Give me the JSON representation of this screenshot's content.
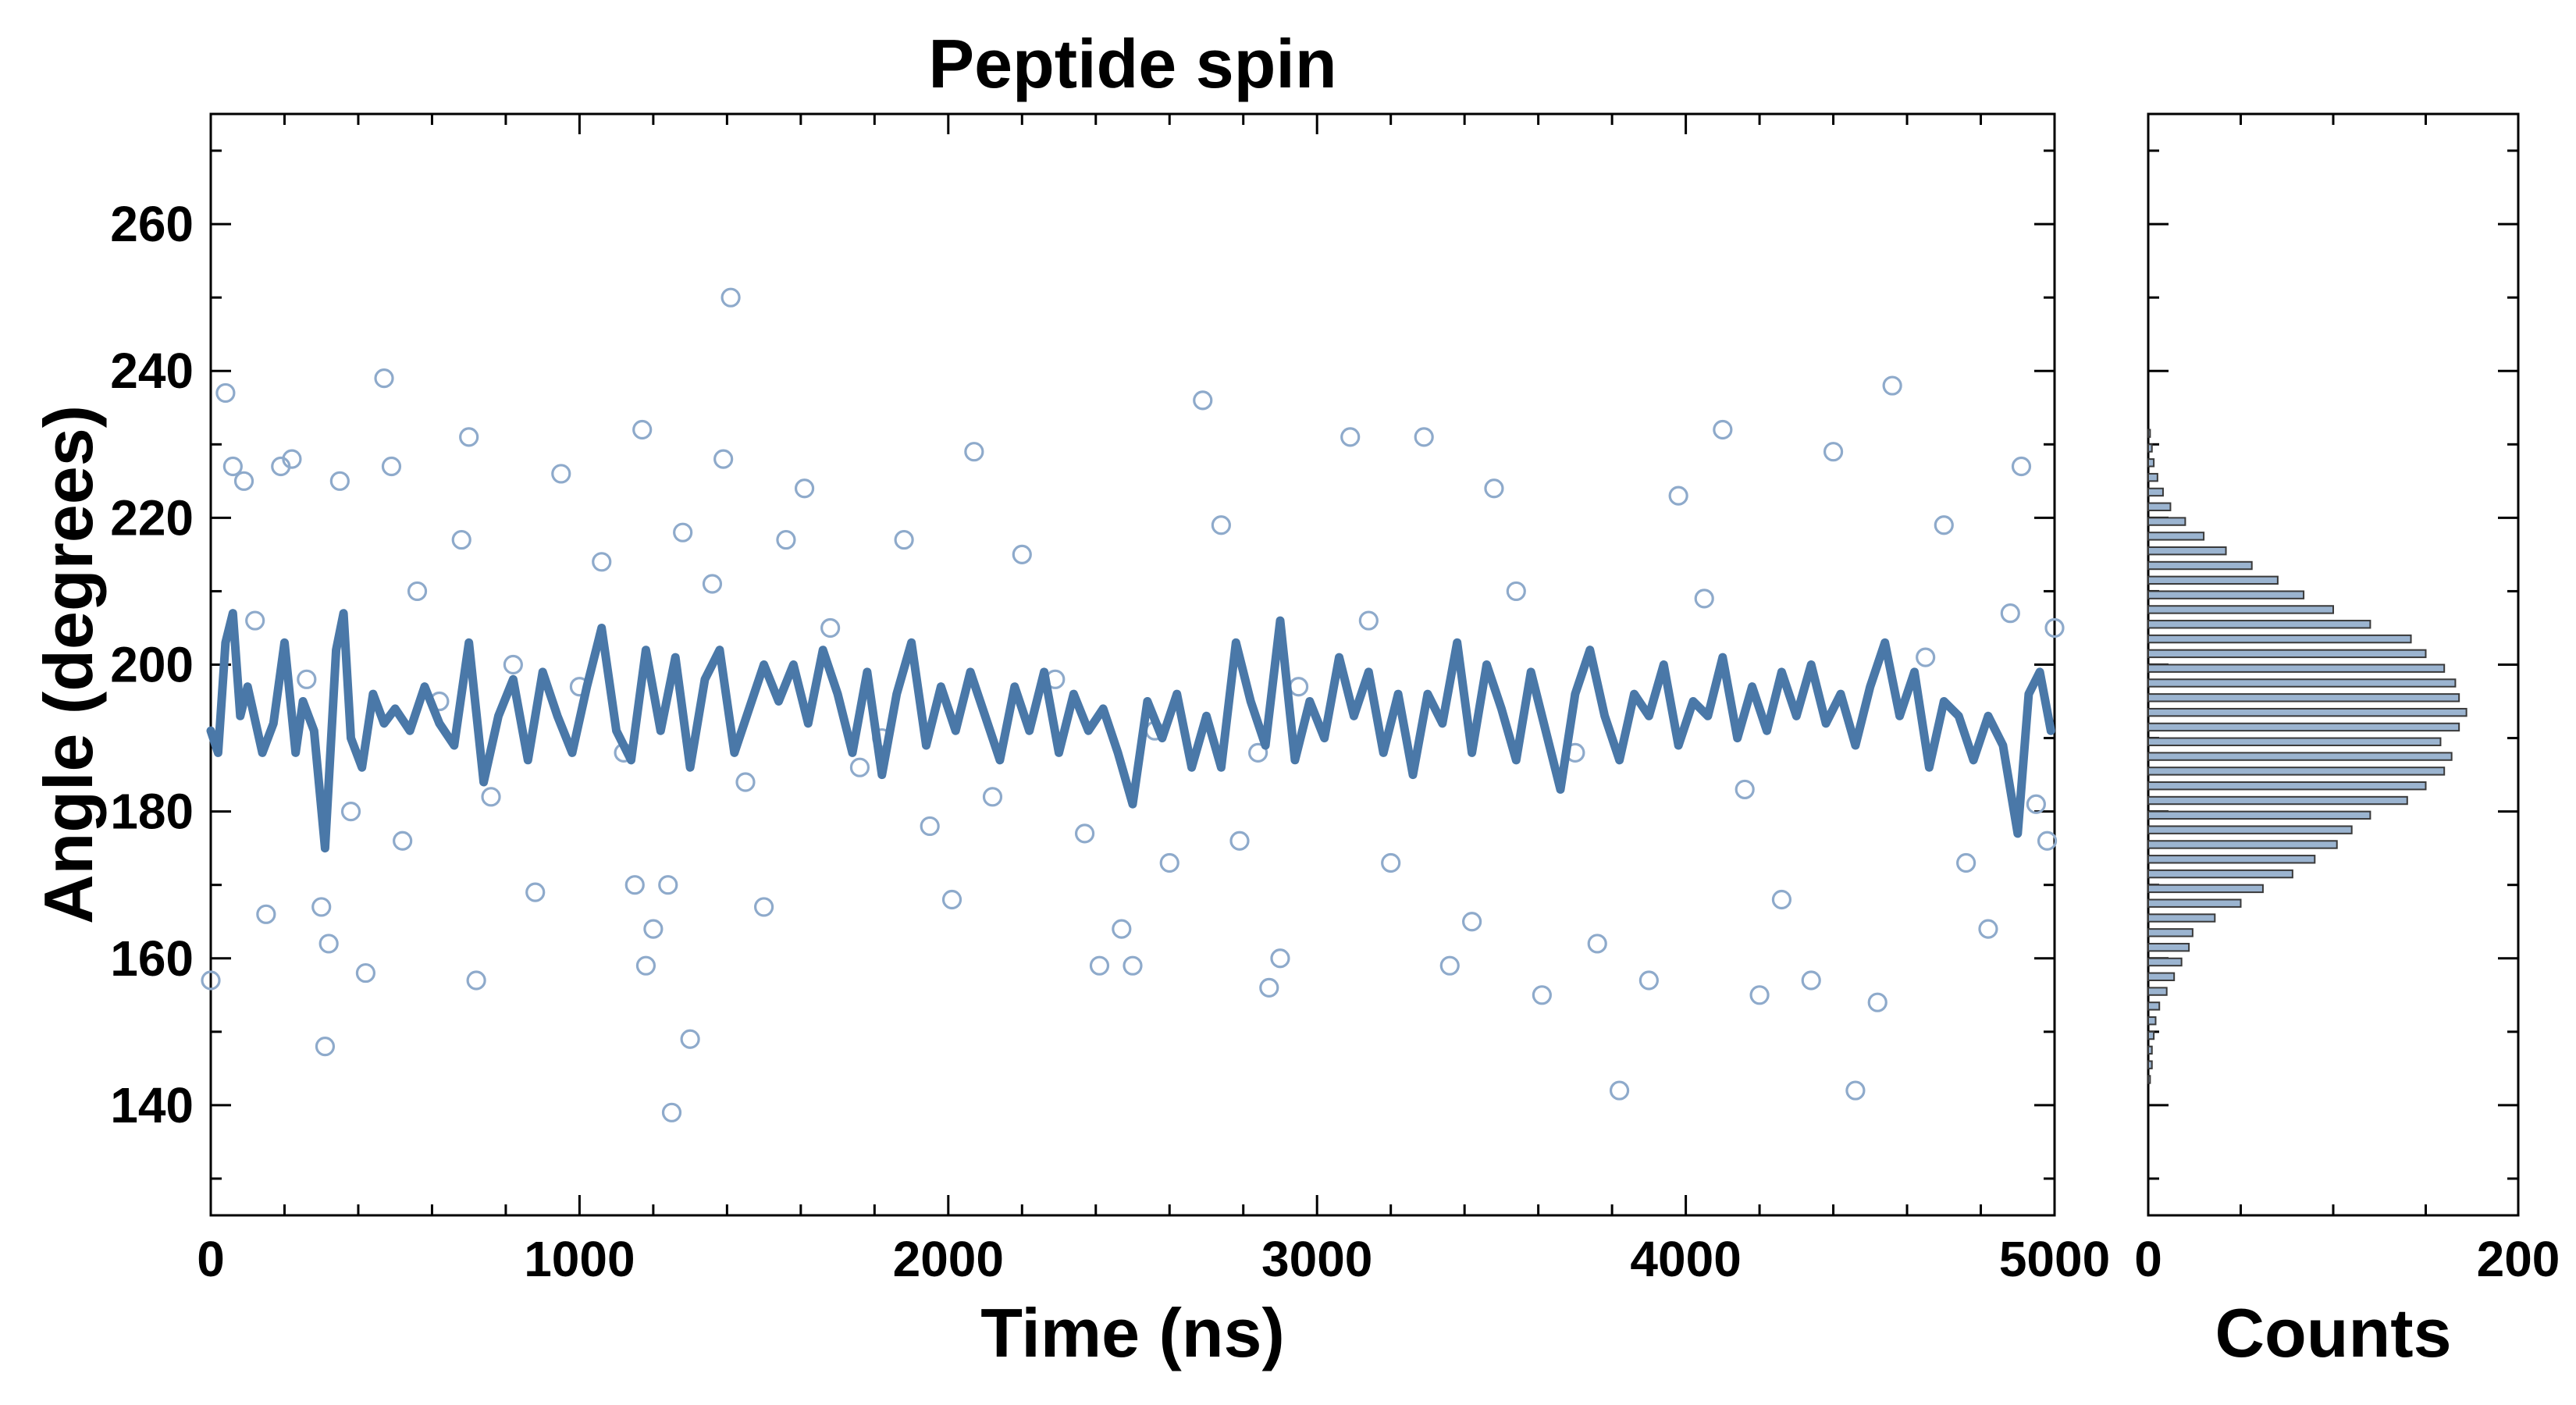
{
  "chart_data": [
    {
      "type": "scatter",
      "title": "Peptide spin",
      "xlabel": "Time (ns)",
      "ylabel": "Angle (degrees)",
      "xlim": [
        0,
        5000
      ],
      "ylim": [
        125,
        275
      ],
      "xticks": [
        "0",
        "1000",
        "2000",
        "3000",
        "4000",
        "5000"
      ],
      "yticks": [
        "140",
        "160",
        "180",
        "200",
        "220",
        "240",
        "260"
      ],
      "grid": false,
      "series": [
        {
          "style": "open-circle markers",
          "color": "#8eaacb",
          "points": [
            [
              0,
              157
            ],
            [
              40,
              237
            ],
            [
              60,
              227
            ],
            [
              90,
              225
            ],
            [
              120,
              206
            ],
            [
              150,
              166
            ],
            [
              190,
              227
            ],
            [
              220,
              228
            ],
            [
              260,
              198
            ],
            [
              300,
              167
            ],
            [
              310,
              148
            ],
            [
              320,
              162
            ],
            [
              350,
              225
            ],
            [
              380,
              180
            ],
            [
              420,
              158
            ],
            [
              470,
              239
            ],
            [
              490,
              227
            ],
            [
              520,
              176
            ],
            [
              560,
              210
            ],
            [
              620,
              195
            ],
            [
              680,
              217
            ],
            [
              700,
              231
            ],
            [
              720,
              157
            ],
            [
              760,
              182
            ],
            [
              820,
              200
            ],
            [
              880,
              169
            ],
            [
              950,
              226
            ],
            [
              1000,
              197
            ],
            [
              1060,
              214
            ],
            [
              1120,
              188
            ],
            [
              1150,
              170
            ],
            [
              1170,
              232
            ],
            [
              1180,
              159
            ],
            [
              1200,
              164
            ],
            [
              1240,
              170
            ],
            [
              1250,
              139
            ],
            [
              1280,
              218
            ],
            [
              1300,
              149
            ],
            [
              1360,
              211
            ],
            [
              1390,
              228
            ],
            [
              1410,
              250
            ],
            [
              1450,
              184
            ],
            [
              1500,
              167
            ],
            [
              1560,
              217
            ],
            [
              1610,
              224
            ],
            [
              1680,
              205
            ],
            [
              1760,
              186
            ],
            [
              1820,
              190
            ],
            [
              1880,
              217
            ],
            [
              1950,
              178
            ],
            [
              2010,
              168
            ],
            [
              2070,
              229
            ],
            [
              2120,
              182
            ],
            [
              2200,
              215
            ],
            [
              2290,
              198
            ],
            [
              2370,
              177
            ],
            [
              2410,
              159
            ],
            [
              2470,
              164
            ],
            [
              2500,
              159
            ],
            [
              2560,
              191
            ],
            [
              2600,
              173
            ],
            [
              2690,
              236
            ],
            [
              2740,
              219
            ],
            [
              2790,
              176
            ],
            [
              2840,
              188
            ],
            [
              2870,
              156
            ],
            [
              2900,
              160
            ],
            [
              2950,
              197
            ],
            [
              3090,
              231
            ],
            [
              3140,
              206
            ],
            [
              3200,
              173
            ],
            [
              3290,
              231
            ],
            [
              3360,
              159
            ],
            [
              3420,
              165
            ],
            [
              3480,
              224
            ],
            [
              3540,
              210
            ],
            [
              3610,
              155
            ],
            [
              3700,
              188
            ],
            [
              3760,
              162
            ],
            [
              3820,
              142
            ],
            [
              3900,
              157
            ],
            [
              3980,
              223
            ],
            [
              4050,
              209
            ],
            [
              4100,
              232
            ],
            [
              4160,
              183
            ],
            [
              4200,
              155
            ],
            [
              4260,
              168
            ],
            [
              4340,
              157
            ],
            [
              4400,
              229
            ],
            [
              4460,
              142
            ],
            [
              4520,
              154
            ],
            [
              4560,
              238
            ],
            [
              4650,
              201
            ],
            [
              4700,
              219
            ],
            [
              4760,
              173
            ],
            [
              4820,
              164
            ],
            [
              4880,
              207
            ],
            [
              4910,
              227
            ],
            [
              4950,
              181
            ],
            [
              4980,
              176
            ],
            [
              5000,
              205
            ]
          ]
        },
        {
          "style": "thick line",
          "color": "#4a78a8",
          "points": [
            [
              0,
              191
            ],
            [
              20,
              188
            ],
            [
              40,
              203
            ],
            [
              60,
              207
            ],
            [
              80,
              193
            ],
            [
              100,
              197
            ],
            [
              140,
              188
            ],
            [
              170,
              192
            ],
            [
              200,
              203
            ],
            [
              230,
              188
            ],
            [
              250,
              195
            ],
            [
              280,
              191
            ],
            [
              310,
              175
            ],
            [
              340,
              202
            ],
            [
              360,
              207
            ],
            [
              380,
              190
            ],
            [
              410,
              186
            ],
            [
              440,
              196
            ],
            [
              470,
              192
            ],
            [
              500,
              194
            ],
            [
              540,
              191
            ],
            [
              580,
              197
            ],
            [
              620,
              192
            ],
            [
              660,
              189
            ],
            [
              700,
              203
            ],
            [
              740,
              184
            ],
            [
              780,
              193
            ],
            [
              820,
              198
            ],
            [
              860,
              187
            ],
            [
              900,
              199
            ],
            [
              940,
              193
            ],
            [
              980,
              188
            ],
            [
              1020,
              197
            ],
            [
              1060,
              205
            ],
            [
              1100,
              191
            ],
            [
              1140,
              187
            ],
            [
              1180,
              202
            ],
            [
              1220,
              191
            ],
            [
              1260,
              201
            ],
            [
              1300,
              186
            ],
            [
              1340,
              198
            ],
            [
              1380,
              202
            ],
            [
              1420,
              188
            ],
            [
              1460,
              194
            ],
            [
              1500,
              200
            ],
            [
              1540,
              195
            ],
            [
              1580,
              200
            ],
            [
              1620,
              192
            ],
            [
              1660,
              202
            ],
            [
              1700,
              196
            ],
            [
              1740,
              188
            ],
            [
              1780,
              199
            ],
            [
              1820,
              185
            ],
            [
              1860,
              196
            ],
            [
              1900,
              203
            ],
            [
              1940,
              189
            ],
            [
              1980,
              197
            ],
            [
              2020,
              191
            ],
            [
              2060,
              199
            ],
            [
              2100,
              193
            ],
            [
              2140,
              187
            ],
            [
              2180,
              197
            ],
            [
              2220,
              191
            ],
            [
              2260,
              199
            ],
            [
              2300,
              188
            ],
            [
              2340,
              196
            ],
            [
              2380,
              191
            ],
            [
              2420,
              194
            ],
            [
              2460,
              188
            ],
            [
              2500,
              181
            ],
            [
              2540,
              195
            ],
            [
              2580,
              190
            ],
            [
              2620,
              196
            ],
            [
              2660,
              186
            ],
            [
              2700,
              193
            ],
            [
              2740,
              186
            ],
            [
              2780,
              203
            ],
            [
              2820,
              195
            ],
            [
              2860,
              189
            ],
            [
              2900,
              206
            ],
            [
              2940,
              187
            ],
            [
              2980,
              195
            ],
            [
              3020,
              190
            ],
            [
              3060,
              201
            ],
            [
              3100,
              193
            ],
            [
              3140,
              199
            ],
            [
              3180,
              188
            ],
            [
              3220,
              196
            ],
            [
              3260,
              185
            ],
            [
              3300,
              196
            ],
            [
              3340,
              192
            ],
            [
              3380,
              203
            ],
            [
              3420,
              188
            ],
            [
              3460,
              200
            ],
            [
              3500,
              194
            ],
            [
              3540,
              187
            ],
            [
              3580,
              199
            ],
            [
              3620,
              191
            ],
            [
              3660,
              183
            ],
            [
              3700,
              196
            ],
            [
              3740,
              202
            ],
            [
              3780,
              193
            ],
            [
              3820,
              187
            ],
            [
              3860,
              196
            ],
            [
              3900,
              193
            ],
            [
              3940,
              200
            ],
            [
              3980,
              189
            ],
            [
              4020,
              195
            ],
            [
              4060,
              193
            ],
            [
              4100,
              201
            ],
            [
              4140,
              190
            ],
            [
              4180,
              197
            ],
            [
              4220,
              191
            ],
            [
              4260,
              199
            ],
            [
              4300,
              193
            ],
            [
              4340,
              200
            ],
            [
              4380,
              192
            ],
            [
              4420,
              196
            ],
            [
              4460,
              189
            ],
            [
              4500,
              197
            ],
            [
              4540,
              203
            ],
            [
              4580,
              193
            ],
            [
              4620,
              199
            ],
            [
              4660,
              186
            ],
            [
              4700,
              195
            ],
            [
              4740,
              193
            ],
            [
              4780,
              187
            ],
            [
              4820,
              193
            ],
            [
              4860,
              189
            ],
            [
              4900,
              177
            ],
            [
              4930,
              196
            ],
            [
              4960,
              199
            ],
            [
              4990,
              191
            ]
          ]
        }
      ]
    },
    {
      "type": "bar",
      "orientation": "horizontal",
      "xlabel": "Counts",
      "xlim": [
        0,
        200
      ],
      "xticks": [
        "0",
        "200"
      ],
      "ylim": [
        125,
        275
      ],
      "color": "#9bb4d0",
      "bins": [
        [
          143,
          144,
          1
        ],
        [
          145,
          146,
          2
        ],
        [
          147,
          148,
          2
        ],
        [
          149,
          150,
          3
        ],
        [
          151,
          152,
          4
        ],
        [
          153,
          154,
          6
        ],
        [
          155,
          156,
          10
        ],
        [
          157,
          158,
          14
        ],
        [
          159,
          160,
          18
        ],
        [
          161,
          162,
          22
        ],
        [
          163,
          164,
          24
        ],
        [
          165,
          166,
          36
        ],
        [
          167,
          168,
          50
        ],
        [
          169,
          170,
          62
        ],
        [
          171,
          172,
          78
        ],
        [
          173,
          174,
          90
        ],
        [
          175,
          176,
          102
        ],
        [
          177,
          178,
          110
        ],
        [
          179,
          180,
          120
        ],
        [
          181,
          182,
          140
        ],
        [
          183,
          184,
          150
        ],
        [
          185,
          186,
          160
        ],
        [
          187,
          188,
          164
        ],
        [
          189,
          190,
          158
        ],
        [
          191,
          192,
          168
        ],
        [
          193,
          194,
          172
        ],
        [
          195,
          196,
          168
        ],
        [
          197,
          198,
          166
        ],
        [
          199,
          200,
          160
        ],
        [
          201,
          202,
          150
        ],
        [
          203,
          204,
          142
        ],
        [
          205,
          206,
          120
        ],
        [
          207,
          208,
          100
        ],
        [
          209,
          210,
          84
        ],
        [
          211,
          212,
          70
        ],
        [
          213,
          214,
          56
        ],
        [
          215,
          216,
          42
        ],
        [
          217,
          218,
          30
        ],
        [
          219,
          220,
          20
        ],
        [
          221,
          222,
          12
        ],
        [
          223,
          224,
          8
        ],
        [
          225,
          226,
          5
        ],
        [
          227,
          228,
          3
        ],
        [
          229,
          230,
          2
        ],
        [
          231,
          232,
          1
        ]
      ]
    }
  ]
}
